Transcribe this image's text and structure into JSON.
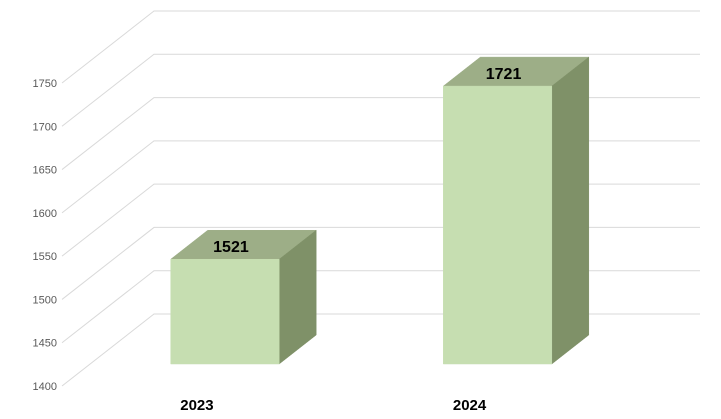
{
  "chart_data": {
    "type": "bar",
    "style": "3d-column",
    "title": "",
    "xlabel": "",
    "ylabel": "",
    "categories": [
      "2023",
      "2024"
    ],
    "values": [
      1521,
      1721
    ],
    "data_labels": [
      "1521",
      "1721"
    ],
    "ylim": [
      1400,
      1750
    ],
    "ytick_step": 50,
    "yticks": [
      1400,
      1450,
      1500,
      1550,
      1600,
      1650,
      1700,
      1750
    ],
    "ytick_labels": [
      "1400",
      "1450",
      "1500",
      "1550",
      "1600",
      "1650",
      "1700",
      "1750"
    ],
    "grid": true,
    "legend": false,
    "colors": {
      "bar_front": "#c6deb1",
      "bar_top": "#9dae87",
      "bar_side": "#7f9168",
      "gridline": "#d9d9d9",
      "tick_label": "#595959",
      "data_label": "#000000",
      "category_label": "#000000",
      "background": "#ffffff"
    }
  }
}
